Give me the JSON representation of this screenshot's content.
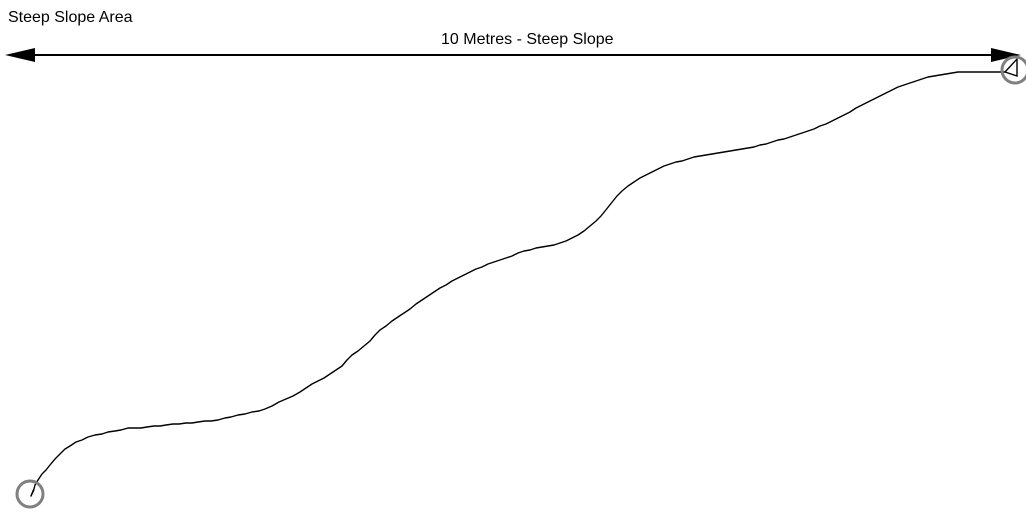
{
  "diagram": {
    "area_label": "Steep Slope Area",
    "dimension_label": "10 Metres - Steep Slope",
    "colors": {
      "line": "#000000",
      "marker": "#808080",
      "background": "#ffffff"
    }
  }
}
